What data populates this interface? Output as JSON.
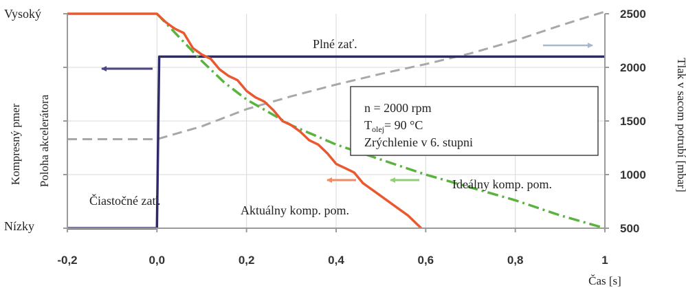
{
  "chart_data": {
    "type": "line",
    "xlabel": "Čas [s]",
    "left_labels": {
      "outer": "Kompresný pmer",
      "inner": "Poloha akcelerátora",
      "top": "Vysoký",
      "bottom": "Nízky"
    },
    "ylabel_right": "Tlak v sacom potrubí [mbar]",
    "xlim": [
      -0.2,
      1.0
    ],
    "ylim_right": [
      500,
      2500
    ],
    "x_ticks": [
      {
        "value": -0.2,
        "label": "-0,2"
      },
      {
        "value": 0.0,
        "label": "0,0"
      },
      {
        "value": 0.2,
        "label": "0,2"
      },
      {
        "value": 0.4,
        "label": "0,4"
      },
      {
        "value": 0.6,
        "label": "0,6"
      },
      {
        "value": 0.8,
        "label": "0,8"
      },
      {
        "value": 1.0,
        "label": "1"
      }
    ],
    "y_right_ticks": [
      {
        "value": 500,
        "label": "500"
      },
      {
        "value": 1000,
        "label": "1000"
      },
      {
        "value": 1500,
        "label": "1500"
      },
      {
        "value": 2000,
        "label": "2000"
      },
      {
        "value": 2500,
        "label": "2500"
      }
    ],
    "grid": true,
    "info_box": {
      "line1": "n = 2000 rpm",
      "line2_main": "T",
      "line2_sub": "olej",
      "line2_rest": "= 90 °C",
      "line3": "Zrýchlenie v 6. stupni"
    },
    "annotations": {
      "full_load": "Plné zať.",
      "partial_load": "Čiastočné zať.",
      "actual": "Aktuálny komp. pom.",
      "ideal": "Ideálny komp. pom."
    },
    "series": [
      {
        "label_key": "full_load",
        "axis": "left",
        "color": "#2e2a6a",
        "x": [
          -0.2,
          0.0,
          0.005,
          1.0
        ],
        "y": [
          0.0,
          0.0,
          0.8,
          0.8
        ]
      },
      {
        "axis": "right",
        "color": "#a8a8a8",
        "style": "dashed",
        "x": [
          -0.2,
          0.0,
          0.1,
          0.2,
          0.3,
          0.4,
          0.5,
          0.6,
          0.7,
          0.8,
          0.9,
          1.0
        ],
        "y": [
          1330,
          1330,
          1450,
          1610,
          1730,
          1840,
          1940,
          2030,
          2130,
          2250,
          2390,
          2520
        ]
      },
      {
        "label_key": "actual",
        "axis": "left",
        "color": "#e9582e",
        "x": [
          -0.2,
          0.0,
          0.02,
          0.04,
          0.06,
          0.08,
          0.1,
          0.12,
          0.14,
          0.16,
          0.18,
          0.2,
          0.22,
          0.24,
          0.26,
          0.28,
          0.3,
          0.32,
          0.34,
          0.36,
          0.38,
          0.4,
          0.42,
          0.44,
          0.46,
          0.48,
          0.5,
          0.52,
          0.54,
          0.56,
          0.58,
          0.59
        ],
        "y": [
          1.0,
          1.0,
          0.96,
          0.93,
          0.91,
          0.84,
          0.81,
          0.79,
          0.74,
          0.71,
          0.69,
          0.64,
          0.61,
          0.59,
          0.55,
          0.5,
          0.48,
          0.45,
          0.41,
          0.39,
          0.35,
          0.3,
          0.28,
          0.26,
          0.21,
          0.18,
          0.15,
          0.12,
          0.09,
          0.06,
          0.02,
          0.0
        ]
      },
      {
        "label_key": "ideal",
        "axis": "left",
        "color": "#5ab33e",
        "style": "dash-dot",
        "x": [
          0.0,
          0.05,
          0.1,
          0.15,
          0.2,
          0.25,
          0.3,
          0.4,
          0.5,
          0.6,
          0.7,
          0.8,
          0.9,
          1.0
        ],
        "y": [
          1.0,
          0.89,
          0.78,
          0.68,
          0.6,
          0.54,
          0.48,
          0.39,
          0.32,
          0.25,
          0.19,
          0.13,
          0.06,
          0.0
        ]
      }
    ]
  }
}
